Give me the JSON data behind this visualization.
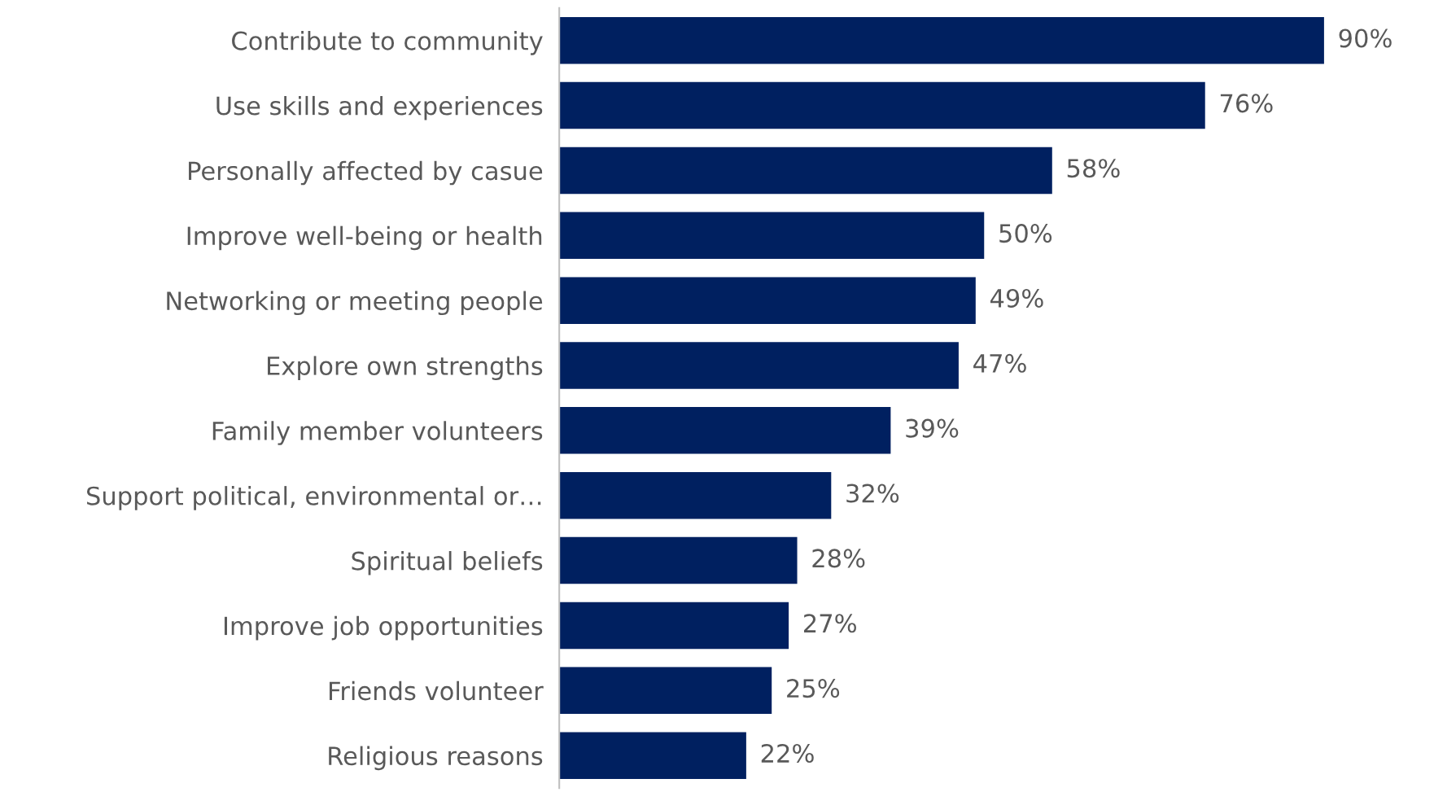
{
  "chart_data": {
    "type": "bar",
    "orientation": "horizontal",
    "categories": [
      "Contribute to community",
      "Use skills and experiences",
      "Personally affected by casue",
      "Improve well-being or health",
      "Networking or meeting people",
      "Explore own strengths",
      "Family member volunteers",
      "Support political, environmental or…",
      "Spiritual beliefs",
      "Improve job opportunities",
      "Friends volunteer",
      "Religious reasons"
    ],
    "values": [
      90,
      76,
      58,
      50,
      49,
      47,
      39,
      32,
      28,
      27,
      25,
      22
    ],
    "value_labels": [
      "90%",
      "76%",
      "58%",
      "50%",
      "49%",
      "47%",
      "39%",
      "32%",
      "28%",
      "27%",
      "25%",
      "22%"
    ],
    "color": "#002060",
    "tick_labels": "y",
    "grid": false,
    "legend": false
  }
}
